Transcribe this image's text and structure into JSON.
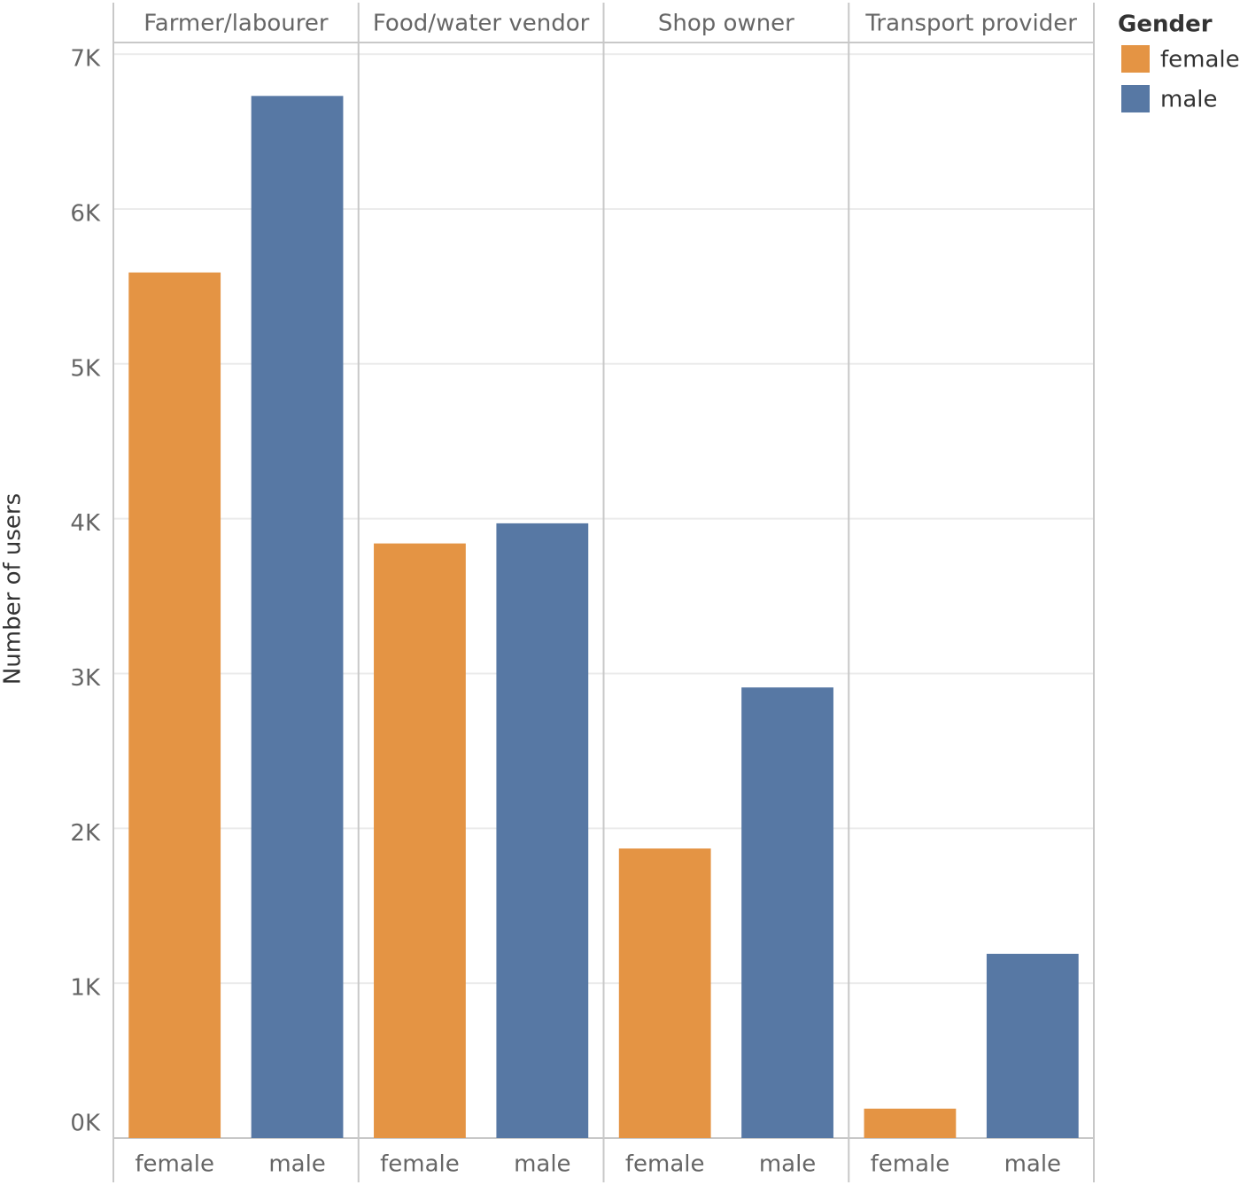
{
  "chart_data": {
    "type": "bar",
    "categories": [
      "Farmer/labourer",
      "Food/water vendor",
      "Shop owner",
      "Transport provider"
    ],
    "series": [
      {
        "name": "female",
        "color": "#e49444",
        "values": [
          5590,
          3840,
          1870,
          190
        ]
      },
      {
        "name": "male",
        "color": "#5778a4",
        "values": [
          6730,
          3970,
          2910,
          1190
        ]
      }
    ],
    "ylabel": "Number of users",
    "legend_title": "Gender",
    "legend": "right",
    "ylim": [
      0,
      7075
    ],
    "yticks": [
      {
        "value": 0,
        "label": "0K"
      },
      {
        "value": 1000,
        "label": "1K"
      },
      {
        "value": 2000,
        "label": "2K"
      },
      {
        "value": 3000,
        "label": "3K"
      },
      {
        "value": 4000,
        "label": "4K"
      },
      {
        "value": 5000,
        "label": "5K"
      },
      {
        "value": 6000,
        "label": "6K"
      },
      {
        "value": 7000,
        "label": "7K"
      }
    ],
    "grid": true
  }
}
